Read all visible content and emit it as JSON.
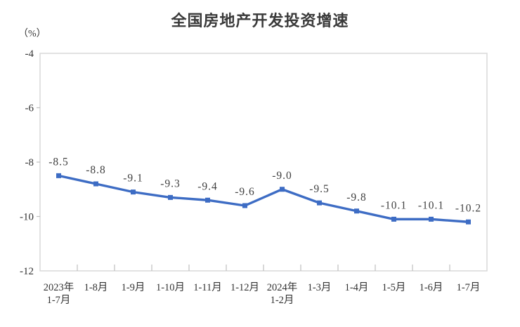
{
  "chart_data": {
    "type": "line",
    "title": "全国房地产开发投资增速",
    "unit_label": "（%）",
    "categories": [
      [
        "2023年",
        "1-7月"
      ],
      "1-8月",
      "1-9月",
      "1-10月",
      "1-11月",
      "1-12月",
      [
        "2024年",
        "1-2月"
      ],
      "1-3月",
      "1-4月",
      "1-5月",
      "1-6月",
      "1-7月"
    ],
    "series": [
      {
        "name": "全国房地产开发投资增速",
        "values": [
          -8.5,
          -8.8,
          -9.1,
          -9.3,
          -9.4,
          -9.6,
          -9.0,
          -9.5,
          -9.8,
          -10.1,
          -10.1,
          -10.2
        ],
        "labels": [
          "-8.5",
          "-8.8",
          "-9.1",
          "-9.3",
          "-9.4",
          "-9.6",
          "-9.0",
          "-9.5",
          "-9.8",
          "-10.1",
          "-10.1",
          "-10.2"
        ]
      }
    ],
    "ylabel": "",
    "xlabel": "",
    "ylim": [
      -12,
      -4
    ],
    "yticks": [
      -4,
      -6,
      -8,
      -10,
      -12
    ],
    "grid": "off",
    "legend": "none",
    "colors": {
      "line": "#3d6cc4",
      "marker": "#3d6cc4",
      "plot_border": "#d9d9d9",
      "tick_mark": "#bfbfbf",
      "text": "#333333",
      "background": "#ffffff"
    }
  }
}
